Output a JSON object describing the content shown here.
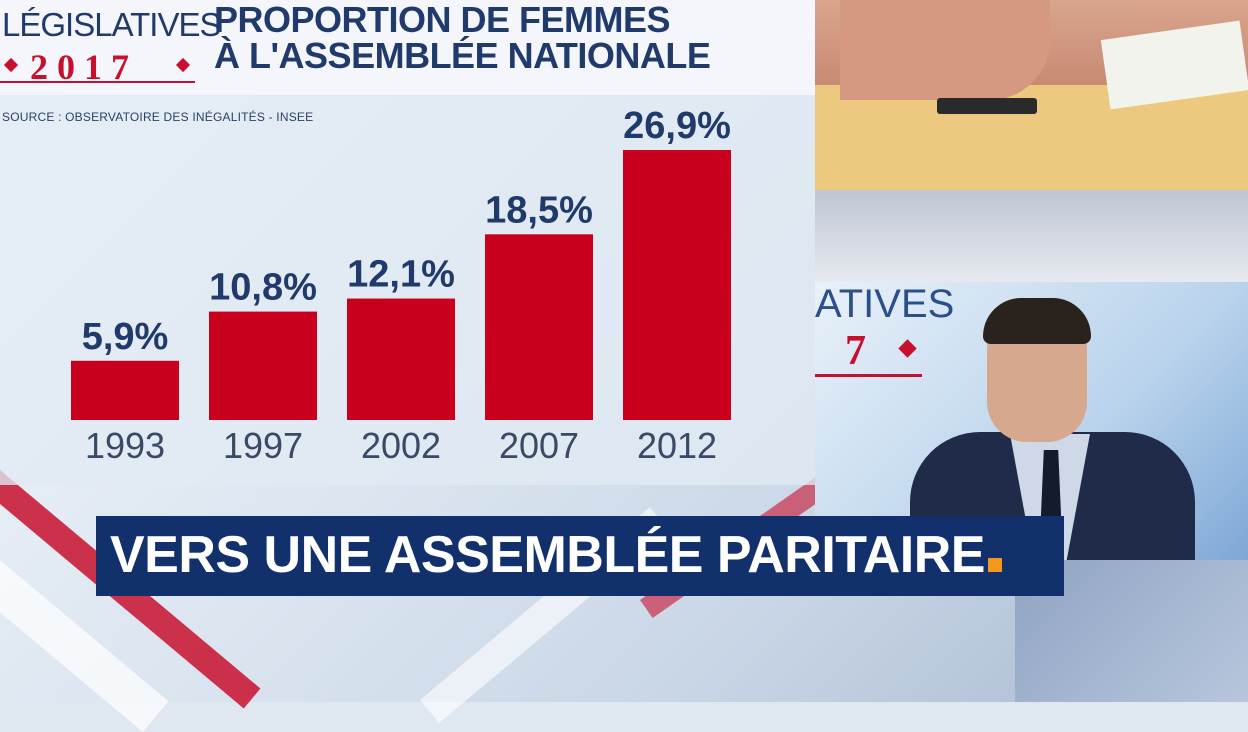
{
  "logo": {
    "top_text": "LÉGISLATIVES",
    "year": "2017"
  },
  "header": {
    "title_line1": "PROPORTION DE FEMMES",
    "title_line2": "À L'ASSEMBLÉE NATIONALE",
    "source": "SOURCE : OBSERVATOIRE DES INÉGALITÉS - INSEE"
  },
  "studio_logo": {
    "partial_text": "ATIVES",
    "partial_year": "7"
  },
  "banner": {
    "text": "VERS UNE ASSEMBLÉE PARITAIRE"
  },
  "colors": {
    "bar": "#c8001e",
    "title": "#1f3a6b",
    "banner_bg": "#12306b",
    "banner_dot": "#f39a1e",
    "logo_red": "#c8102e"
  },
  "chart_data": {
    "type": "bar",
    "title": "PROPORTION DE FEMMES À L'ASSEMBLÉE NATIONALE",
    "categories": [
      "1993",
      "1997",
      "2002",
      "2007",
      "2012"
    ],
    "values": [
      5.9,
      10.8,
      12.1,
      18.5,
      26.9
    ],
    "value_labels": [
      "5,9%",
      "10,8%",
      "12,1%",
      "18,5%",
      "26,9%"
    ],
    "unit": "%",
    "ylim": [
      0,
      26.9
    ],
    "grid": false,
    "legend": "none"
  }
}
